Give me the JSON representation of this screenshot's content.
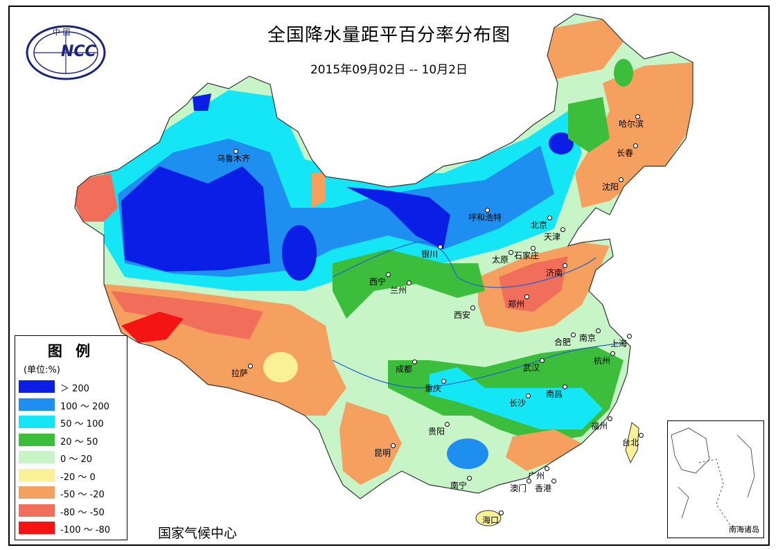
{
  "header": {
    "title": "全国降水量距平百分率分布图",
    "date_range": "2015年09月02日 -- 10月2日"
  },
  "logo": {
    "text": "NCC",
    "top_text": "中 国"
  },
  "legend": {
    "title": "图 例",
    "unit": "(单位:%)",
    "items": [
      {
        "label": "＞ 200",
        "color": "#0a1ee6"
      },
      {
        "label": "100 ～ 200",
        "color": "#1e8ff0"
      },
      {
        "label": "50 ～ 100",
        "color": "#14e6f5"
      },
      {
        "label": "20 ～ 50",
        "color": "#3cbe3c"
      },
      {
        "label": "0 ～ 20",
        "color": "#c8f5c8"
      },
      {
        "label": "-20 ～ 0",
        "color": "#faf096"
      },
      {
        "label": "-50 ～ -20",
        "color": "#f5a05f"
      },
      {
        "label": "-80 ～ -50",
        "color": "#f06e5a"
      },
      {
        "label": "-100 ～ -80",
        "color": "#f51414"
      }
    ]
  },
  "source": "国家气候中心",
  "inset": {
    "label": "南海诸岛"
  },
  "cities": [
    {
      "name": "乌鲁木齐"
    },
    {
      "name": "哈尔滨"
    },
    {
      "name": "长春"
    },
    {
      "name": "沈阳"
    },
    {
      "name": "呼和浩特"
    },
    {
      "name": "北京"
    },
    {
      "name": "天津"
    },
    {
      "name": "银川"
    },
    {
      "name": "石家庄"
    },
    {
      "name": "太原"
    },
    {
      "name": "济南"
    },
    {
      "name": "西宁"
    },
    {
      "name": "兰州"
    },
    {
      "name": "郑州"
    },
    {
      "name": "西安"
    },
    {
      "name": "合肥"
    },
    {
      "name": "南京"
    },
    {
      "name": "上海"
    },
    {
      "name": "拉萨"
    },
    {
      "name": "成都"
    },
    {
      "name": "武汉"
    },
    {
      "name": "杭州"
    },
    {
      "name": "重庆"
    },
    {
      "name": "南昌"
    },
    {
      "name": "长沙"
    },
    {
      "name": "福州"
    },
    {
      "name": "贵阳"
    },
    {
      "name": "台北"
    },
    {
      "name": "昆明"
    },
    {
      "name": "南宁"
    },
    {
      "name": "广州"
    },
    {
      "name": "澳门"
    },
    {
      "name": "香港"
    },
    {
      "name": "海口"
    }
  ]
}
